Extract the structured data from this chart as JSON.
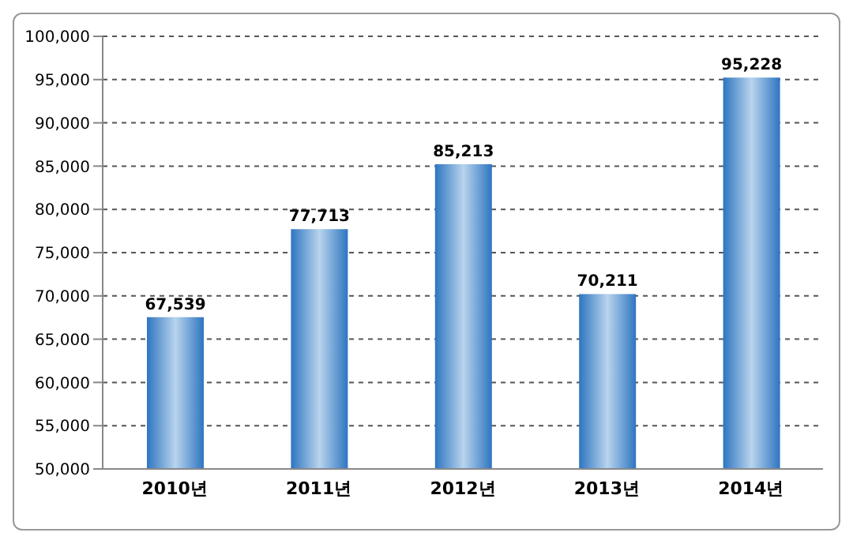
{
  "chart_data": {
    "type": "bar",
    "categories": [
      "2010년",
      "2011년",
      "2012년",
      "2013년",
      "2014년"
    ],
    "values": [
      67539,
      77713,
      85213,
      70211,
      95228
    ],
    "value_labels": [
      "67,539",
      "77,713",
      "85,213",
      "70,211",
      "95,228"
    ],
    "color": "#2e75c0",
    "ylim": [
      50000,
      100000
    ],
    "yticks": [
      {
        "value": 50000,
        "label": "50,000"
      },
      {
        "value": 55000,
        "label": "55,000"
      },
      {
        "value": 60000,
        "label": "60,000"
      },
      {
        "value": 65000,
        "label": "65,000"
      },
      {
        "value": 70000,
        "label": "70,000"
      },
      {
        "value": 75000,
        "label": "75,000"
      },
      {
        "value": 80000,
        "label": "80,000"
      },
      {
        "value": 85000,
        "label": "85,000"
      },
      {
        "value": 90000,
        "label": "90,000"
      },
      {
        "value": 95000,
        "label": "95,000"
      },
      {
        "value": 100000,
        "label": "100,000"
      }
    ],
    "grid": "y"
  }
}
